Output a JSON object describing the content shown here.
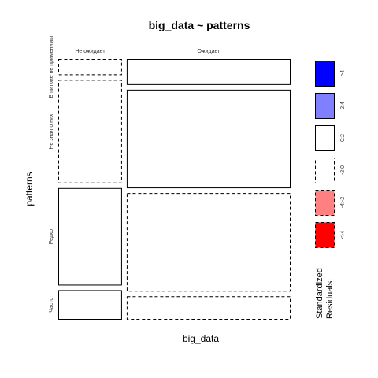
{
  "chart_data": {
    "type": "mosaic",
    "title": "big_data ~ patterns",
    "xlabel": "big_data",
    "ylabel": "patterns",
    "x_categories": [
      "Не ожидает",
      "Ожидает"
    ],
    "y_categories": [
      "В питоне не применимы",
      "Не знал о них",
      "Редко",
      "Часто"
    ],
    "column_fractions": [
      0.28,
      0.72
    ],
    "cells": [
      {
        "x": "Не ожидает",
        "y": "В питоне не применимы",
        "share": 0.065,
        "residual_class": "-2:0"
      },
      {
        "x": "Не ожидает",
        "y": "Не знал о них",
        "share": 0.42,
        "residual_class": "-2:0"
      },
      {
        "x": "Не ожидает",
        "y": "Редко",
        "share": 0.395,
        "residual_class": "0:2"
      },
      {
        "x": "Не ожидает",
        "y": "Часто",
        "share": 0.12,
        "residual_class": "0:2"
      },
      {
        "x": "Ожидает",
        "y": "В питоне не применимы",
        "share": 0.105,
        "residual_class": "0:2"
      },
      {
        "x": "Ожидает",
        "y": "Не знал о них",
        "share": 0.4,
        "residual_class": "0:2"
      },
      {
        "x": "Ожидает",
        "y": "Редко",
        "share": 0.4,
        "residual_class": "-2:0"
      },
      {
        "x": "Ожидает",
        "y": "Часто",
        "share": 0.095,
        "residual_class": "-2:0"
      }
    ],
    "legend": {
      "title_lines": [
        "Standardized",
        "Residuals:"
      ],
      "position": "right",
      "entries": [
        {
          "label": ">4",
          "fill": "#0000ff",
          "dashed": false
        },
        {
          "label": "2:4",
          "fill": "#8080ff",
          "dashed": false
        },
        {
          "label": "0:2",
          "fill": "#ffffff",
          "dashed": false
        },
        {
          "label": "-2:0",
          "fill": "#ffffff",
          "dashed": true
        },
        {
          "label": "-4:-2",
          "fill": "#ff8080",
          "dashed": true
        },
        {
          "label": "<-4",
          "fill": "#ff0000",
          "dashed": true
        }
      ]
    }
  }
}
